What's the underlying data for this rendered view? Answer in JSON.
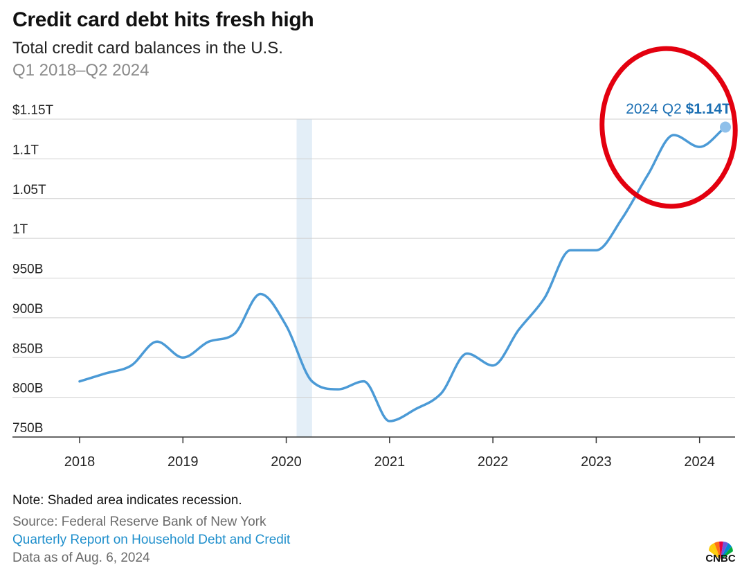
{
  "header": {
    "title": "Credit card debt hits fresh high",
    "subtitle": "Total credit card balances in the U.S.",
    "period": "Q1 2018–Q2 2024"
  },
  "footer": {
    "note": "Note: Shaded area indicates recession.",
    "source": "Source: Federal Reserve Bank of New York",
    "report_link": "Quarterly Report on Household Debt and Credit",
    "data_as_of": "Data as of Aug. 6, 2024"
  },
  "logo": {
    "text": "CNBC",
    "icon": "peacock-icon"
  },
  "colors": {
    "line": "#4b9ad6",
    "recession": "#e3eef7",
    "highlight_text": "#1b6fb3",
    "circle": "#e3000f",
    "grid": "#cfcfcf"
  },
  "chart_data": {
    "type": "line",
    "title": "Credit card debt hits fresh high",
    "subtitle": "Total credit card balances in the U.S.",
    "x_tick_labels": [
      "2018",
      "2019",
      "2020",
      "2021",
      "2022",
      "2023",
      "2024"
    ],
    "y_tick_labels": [
      "750B",
      "800B",
      "850B",
      "900B",
      "950B",
      "1T",
      "1.05T",
      "1.1T",
      "1.15T"
    ],
    "y_tick_values": [
      750,
      800,
      850,
      900,
      950,
      1000,
      1050,
      1100,
      1150
    ],
    "y_top_prefix": "$",
    "ylim": [
      750,
      1150
    ],
    "xlim": [
      2018,
      2024.25
    ],
    "grid": true,
    "recession": {
      "start": 2020.1,
      "end": 2020.25
    },
    "series": [
      {
        "x": [
          2018.0,
          2018.25,
          2018.5,
          2018.75,
          2019.0,
          2019.25,
          2019.5,
          2019.75,
          2020.0,
          2020.25,
          2020.5,
          2020.75,
          2021.0,
          2021.25,
          2021.5,
          2021.75,
          2022.0,
          2022.25,
          2022.5,
          2022.75,
          2023.0,
          2023.25,
          2023.5,
          2023.75,
          2024.0,
          2024.25
        ],
        "values": [
          820,
          830,
          840,
          870,
          850,
          870,
          880,
          930,
          890,
          820,
          810,
          820,
          770,
          785,
          805,
          855,
          840,
          885,
          925,
          985,
          985,
          1025,
          1080,
          1130,
          1115,
          1140
        ]
      }
    ],
    "annotation": {
      "period": "2024 Q2",
      "value": "$1.14T"
    }
  }
}
